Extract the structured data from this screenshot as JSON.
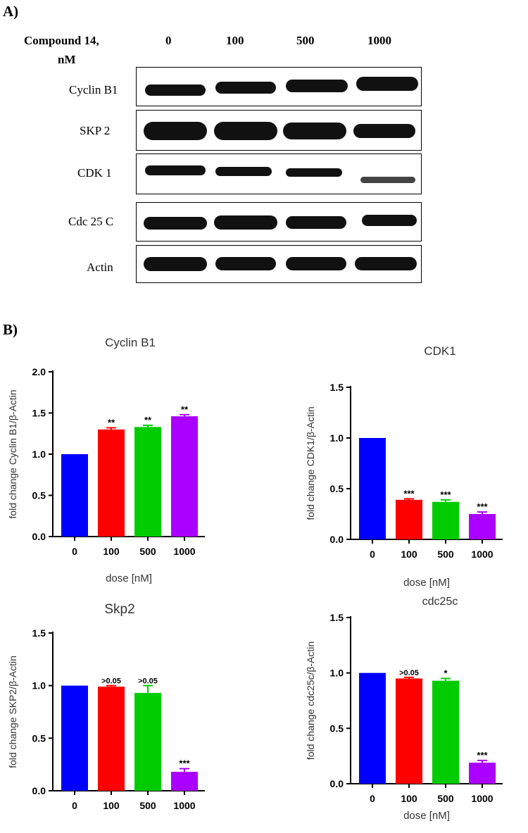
{
  "panel_a_label": "A)",
  "panel_b_label": "B)",
  "western_blot": {
    "header_label_line1": "Compound  14,",
    "header_label_line2": "nM",
    "doses": [
      "0",
      "100",
      "500",
      "1000"
    ],
    "rows": [
      "Cyclin  B1",
      "SKP 2",
      "CDK  1",
      "Cdc 25 C",
      "Actin"
    ]
  },
  "chart_data": [
    {
      "type": "bar",
      "title": "Cyclin B1",
      "categories": [
        "0",
        "100",
        "500",
        "1000"
      ],
      "values": [
        1.0,
        1.3,
        1.33,
        1.46
      ],
      "errors": [
        0.0,
        0.02,
        0.02,
        0.02
      ],
      "annotations": [
        "",
        "**",
        "**",
        "**"
      ],
      "xlabel": "dose [nM]",
      "ylabel": "fold change Cyclin B1/β-Actin",
      "ylim": [
        0,
        2.0
      ],
      "yticks": [
        "0.0",
        "0.5",
        "1.0",
        "1.5",
        "2.0"
      ],
      "colors": [
        "#0000ff",
        "#ff0000",
        "#00cc00",
        "#aa00ff"
      ]
    },
    {
      "type": "bar",
      "title": "CDK1",
      "categories": [
        "0",
        "100",
        "500",
        "1000"
      ],
      "values": [
        1.0,
        0.39,
        0.37,
        0.25
      ],
      "errors": [
        0.0,
        0.01,
        0.02,
        0.02
      ],
      "annotations": [
        "",
        "***",
        "***",
        "***"
      ],
      "xlabel": "dose [nM]",
      "ylabel": "fold change CDK1/β-Actin",
      "ylim": [
        0,
        1.5
      ],
      "yticks": [
        "0.0",
        "0.5",
        "1.0",
        "1.5"
      ],
      "colors": [
        "#0000ff",
        "#ff0000",
        "#00cc00",
        "#aa00ff"
      ]
    },
    {
      "type": "bar",
      "title": "Skp2",
      "categories": [
        "0",
        "100",
        "500",
        "1000"
      ],
      "values": [
        1.0,
        0.99,
        0.93,
        0.18
      ],
      "errors": [
        0.0,
        0.01,
        0.07,
        0.03
      ],
      "annotations": [
        "",
        ">0.05",
        ">0.05",
        "***"
      ],
      "xlabel": "",
      "ylabel": "fold change SKP2/β-Actin",
      "ylim": [
        0,
        1.5
      ],
      "yticks": [
        "0.0",
        "0.5",
        "1.0",
        "1.5"
      ],
      "colors": [
        "#0000ff",
        "#ff0000",
        "#00cc00",
        "#aa00ff"
      ]
    },
    {
      "type": "bar",
      "title": "cdc25c",
      "categories": [
        "0",
        "100",
        "500",
        "1000"
      ],
      "values": [
        1.0,
        0.95,
        0.93,
        0.19
      ],
      "errors": [
        0.0,
        0.01,
        0.02,
        0.02
      ],
      "annotations": [
        "",
        ">0.05",
        "*",
        "***"
      ],
      "xlabel": "dose [nM]",
      "ylabel": "fold change cdc25c/β-Actin",
      "ylim": [
        0,
        1.5
      ],
      "yticks": [
        "0.0",
        "0.5",
        "1.0",
        "1.5"
      ],
      "colors": [
        "#0000ff",
        "#ff0000",
        "#00cc00",
        "#aa00ff"
      ]
    }
  ]
}
